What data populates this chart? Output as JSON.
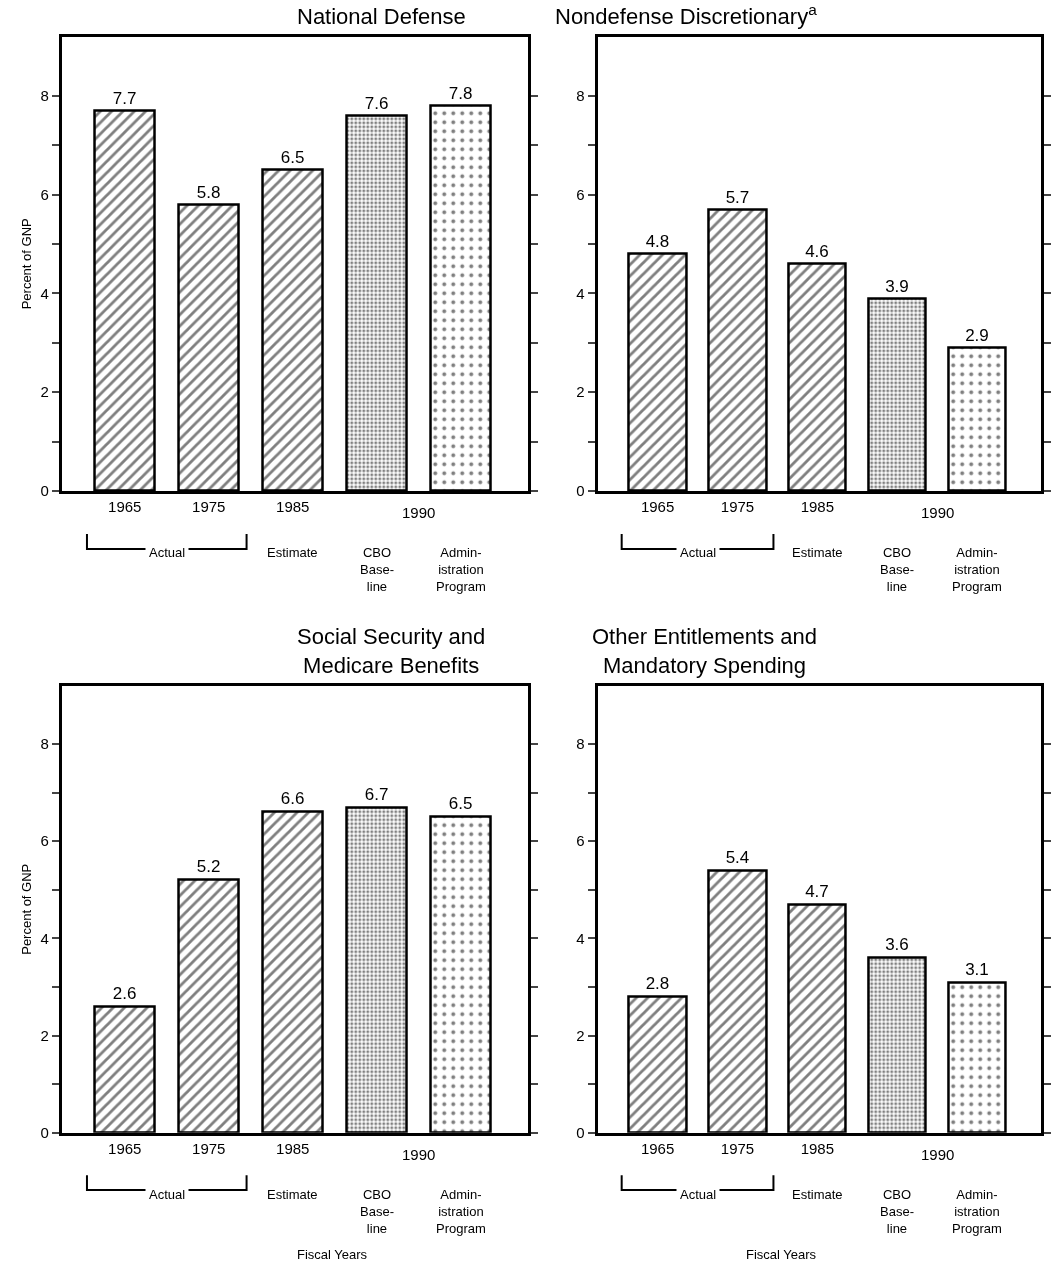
{
  "chart_data": [
    {
      "type": "bar",
      "title": "National Defense",
      "ylabel": "Percent of GNP",
      "categories": [
        "1965",
        "1975",
        "1985",
        null,
        null
      ],
      "values": [
        7.7,
        5.8,
        6.5,
        7.6,
        7.8
      ],
      "colors": [
        "#000000",
        "#000000",
        "#000000",
        "#000000",
        "#000000"
      ],
      "data_labels": true,
      "ylim": [
        0,
        9.2
      ],
      "yticks": [
        0,
        {
          "value": 1,
          "label": null
        },
        2,
        {
          "value": 3,
          "label": null
        },
        4,
        {
          "value": 5,
          "label": null
        },
        6,
        {
          "value": 7,
          "label": null
        },
        8
      ],
      "annotations": [
        "1990",
        "Actual",
        "Estimate",
        "CBO\nBase-\nline",
        "Admin-\nistration\nProgram"
      ]
    },
    {
      "type": "bar",
      "title": "Nondefense Discretionary$^{a}$",
      "categories": [
        "1965",
        "1975",
        "1985",
        null,
        null
      ],
      "values": [
        4.8,
        5.7,
        4.6,
        3.9,
        2.9
      ],
      "colors": [
        "#000000",
        "#000000",
        "#000000",
        "#000000",
        "#000000"
      ],
      "data_labels": true,
      "ylim": [
        0,
        9.2
      ],
      "yticks": [
        0,
        {
          "value": 1,
          "label": null
        },
        2,
        {
          "value": 3,
          "label": null
        },
        4,
        {
          "value": 5,
          "label": null
        },
        6,
        {
          "value": 7,
          "label": null
        },
        8
      ],
      "annotations": [
        "1990",
        "Actual",
        "Estimate",
        "CBO\nBase-\nline",
        "Admin-\nistration\nProgram"
      ]
    },
    {
      "type": "bar",
      "title": "Social Security and\nMedicare Benefits",
      "ylabel": "Percent of GNP",
      "xlabel": "Fiscal Years",
      "categories": [
        "1965",
        "1975",
        "1985",
        null,
        null
      ],
      "values": [
        2.6,
        5.2,
        6.6,
        6.7,
        6.5
      ],
      "colors": [
        "#000000",
        "#000000",
        "#000000",
        "#000000",
        "#000000"
      ],
      "data_labels": true,
      "ylim": [
        0,
        9.2
      ],
      "yticks": [
        0,
        {
          "value": 1,
          "label": null
        },
        2,
        {
          "value": 3,
          "label": null
        },
        4,
        {
          "value": 5,
          "label": null
        },
        6,
        {
          "value": 7,
          "label": null
        },
        8
      ],
      "annotations": [
        "1990",
        "Actual",
        "Estimate",
        "CBO\nBase-\nline",
        "Admin-\nistration\nProgram"
      ]
    },
    {
      "type": "bar",
      "title": "Other Entitlements and\nMandatory Spending",
      "xlabel": "Fiscal Years",
      "categories": [
        "1965",
        "1975",
        "1985",
        null,
        null
      ],
      "values": [
        2.8,
        5.4,
        4.7,
        3.6,
        3.1
      ],
      "colors": [
        "#000000",
        "#000000",
        "#000000",
        "#000000",
        "#000000"
      ],
      "data_labels": true,
      "ylim": [
        0,
        9.2
      ],
      "yticks": [
        0,
        {
          "value": 1,
          "label": null
        },
        2,
        {
          "value": 3,
          "label": null
        },
        4,
        {
          "value": 5,
          "label": null
        },
        6,
        {
          "value": 7,
          "label": null
        },
        8
      ],
      "annotations": [
        "1990",
        "Actual",
        "Estimate",
        "CBO\nBase-\nline",
        "Admin-\nistration\nProgram"
      ]
    }
  ]
}
